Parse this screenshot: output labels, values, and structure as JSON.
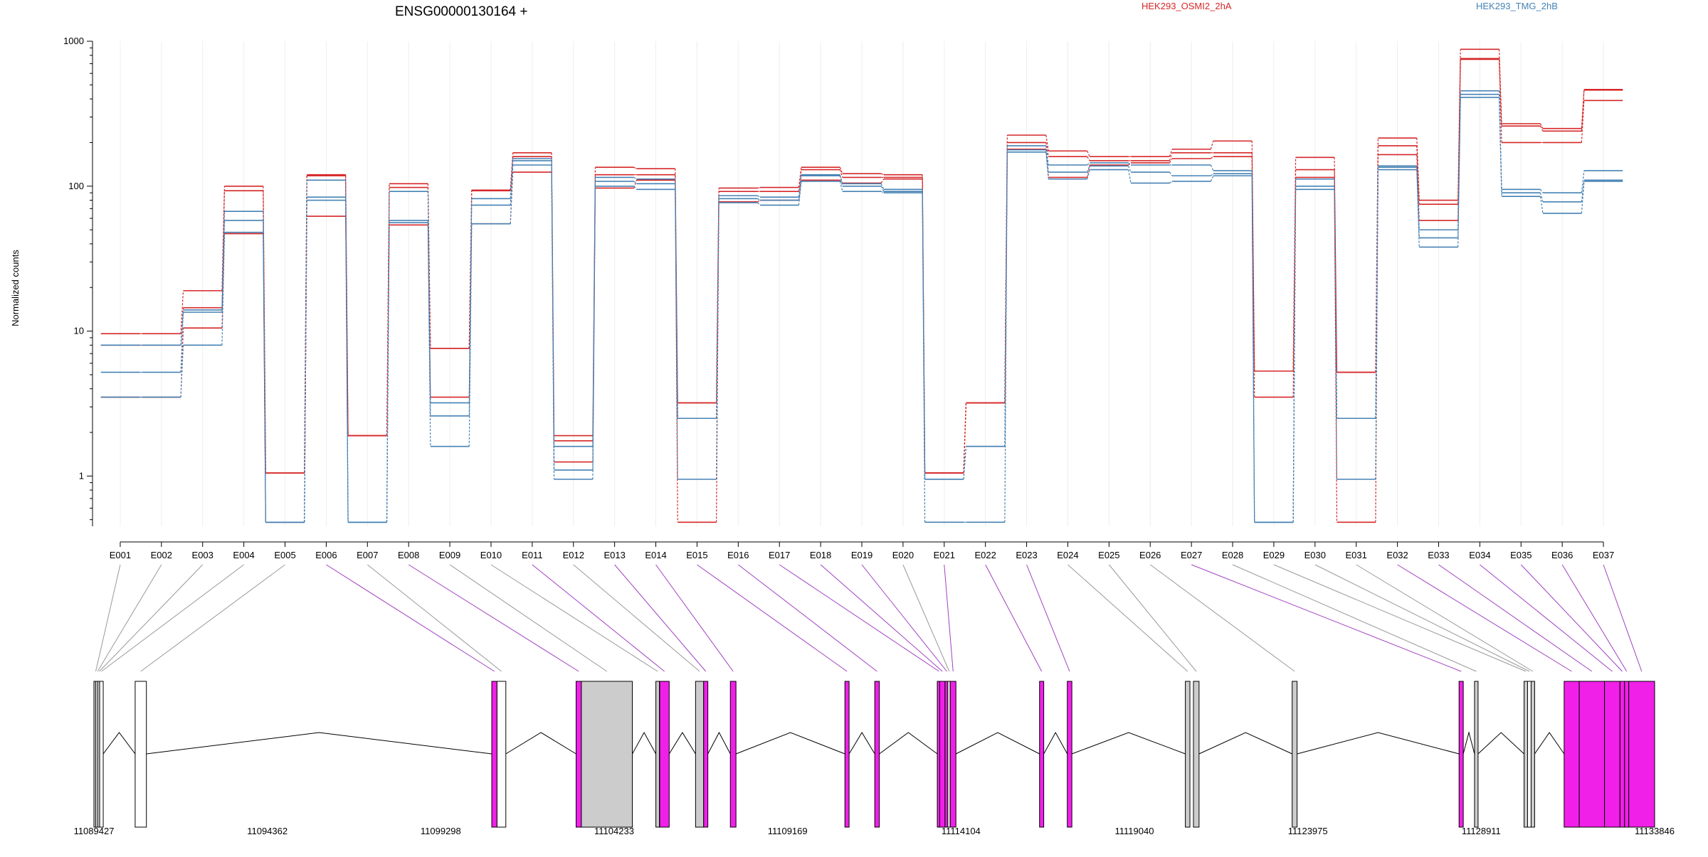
{
  "chart_data": {
    "type": "line",
    "title": "ENSG00000130164 +",
    "ylabel": "Normalized counts",
    "yscale": "log",
    "ylim": [
      0.45,
      1000
    ],
    "yticks": [
      "1",
      "10",
      "100",
      "1000"
    ],
    "grid": true,
    "legend_position": "top",
    "categories": [
      "E001",
      "E002",
      "E003",
      "E004",
      "E005",
      "E006",
      "E007",
      "E008",
      "E009",
      "E010",
      "E011",
      "E012",
      "E013",
      "E014",
      "E015",
      "E016",
      "E017",
      "E018",
      "E019",
      "E020",
      "E021",
      "E022",
      "E023",
      "E024",
      "E025",
      "E026",
      "E027",
      "E028",
      "E029",
      "E030",
      "E031",
      "E032",
      "E033",
      "E034",
      "E035",
      "E036",
      "E037"
    ],
    "series": [
      {
        "name": "HEK293_OSMI2_2hA",
        "color": "#d62728",
        "values": [
          9.6,
          9.6,
          19,
          100,
          1.05,
          120,
          1.9,
          104,
          7.6,
          94,
          170,
          1.9,
          135,
          132,
          3.2,
          97,
          98,
          135,
          122,
          120,
          1.05,
          3.2,
          225,
          175,
          160,
          160,
          180,
          205,
          5.3,
          158,
          5.2,
          215,
          80,
          880,
          270,
          250,
          465
        ]
      },
      {
        "name": "HEK293_OSMI2_2hA",
        "color": "#d62728",
        "values": [
          8.0,
          8.0,
          14.5,
          93,
          1.05,
          118,
          1.9,
          98,
          7.6,
          93,
          160,
          1.75,
          120,
          120,
          3.2,
          92,
          92,
          130,
          115,
          115,
          1.05,
          3.2,
          200,
          160,
          150,
          150,
          170,
          170,
          5.3,
          130,
          5.2,
          190,
          75,
          750,
          260,
          240,
          460
        ]
      },
      {
        "name": "HEK293_OSMI2_2hA",
        "color": "#d62728",
        "values": [
          3.5,
          3.5,
          10.5,
          47,
          0.48,
          62,
          1.9,
          54,
          3.5,
          55,
          125,
          1.25,
          97,
          110,
          0.48,
          78,
          80,
          110,
          105,
          112,
          1.05,
          3.2,
          180,
          115,
          140,
          145,
          155,
          160,
          3.5,
          115,
          0.48,
          165,
          58,
          760,
          200,
          200,
          390
        ]
      },
      {
        "name": "HEK293_TMG_2hB",
        "color": "#4682b4",
        "values": [
          8.0,
          8.0,
          14,
          67,
          0.48,
          110,
          0.48,
          92,
          3.2,
          82,
          155,
          1.6,
          115,
          112,
          2.5,
          86,
          84,
          120,
          104,
          95,
          0.95,
          1.6,
          190,
          140,
          145,
          140,
          140,
          128,
          0.48,
          100,
          2.5,
          138,
          50,
          455,
          95,
          90,
          128
        ]
      },
      {
        "name": "HEK293_TMG_2hB",
        "color": "#4682b4",
        "values": [
          5.2,
          5.2,
          13.5,
          58,
          0.48,
          84,
          0.48,
          58,
          2.6,
          74,
          150,
          1.1,
          108,
          104,
          2.5,
          82,
          80,
          118,
          100,
          92,
          0.95,
          1.6,
          178,
          125,
          138,
          125,
          118,
          122,
          0.48,
          95,
          2.5,
          135,
          44,
          430,
          90,
          78,
          110
        ]
      },
      {
        "name": "HEK293_TMG_2hB",
        "color": "#4682b4",
        "values": [
          3.5,
          3.5,
          8.0,
          48,
          0.48,
          80,
          0.48,
          56,
          1.6,
          55,
          140,
          0.95,
          100,
          95,
          0.95,
          77,
          74,
          108,
          92,
          90,
          0.48,
          0.48,
          172,
          112,
          130,
          105,
          108,
          118,
          0.48,
          112,
          0.95,
          130,
          38,
          410,
          85,
          65,
          108
        ]
      }
    ],
    "gene_model": {
      "coordinate_labels": [
        "11089427",
        "11094362",
        "11099298",
        "11104233",
        "11109169",
        "11114104",
        "11119040",
        "11123975",
        "11128911",
        "11133846"
      ],
      "gene_start": 11089427,
      "gene_end": 11133846,
      "exon_color_colored": "#f020e8",
      "exon_color_constitutive": "#cccccc",
      "exons": [
        {
          "id": "E001",
          "start": 11089427,
          "end": 11089480,
          "fill": "grey",
          "colored": false
        },
        {
          "id": "E002",
          "start": 11089480,
          "end": 11089530,
          "fill": "white",
          "colored": false
        },
        {
          "id": "E003",
          "start": 11089530,
          "end": 11089590,
          "fill": "grey",
          "colored": false
        },
        {
          "id": "E004",
          "start": 11089590,
          "end": 11089640,
          "fill": "white",
          "colored": false
        },
        {
          "id": "E005",
          "start": 11090600,
          "end": 11090920,
          "fill": "white",
          "colored": false
        },
        {
          "id": "E006",
          "start": 11100750,
          "end": 11100900,
          "fill": "magenta",
          "colored": true
        },
        {
          "id": "E007",
          "start": 11100900,
          "end": 11101150,
          "fill": "white",
          "colored": false
        },
        {
          "id": "E008",
          "start": 11103150,
          "end": 11103300,
          "fill": "magenta",
          "colored": true
        },
        {
          "id": "E009",
          "start": 11103300,
          "end": 11104750,
          "fill": "grey",
          "colored": false
        },
        {
          "id": "E010",
          "start": 11105420,
          "end": 11105480,
          "fill": "grey",
          "colored": false
        },
        {
          "id": "E011",
          "start": 11105530,
          "end": 11105800,
          "fill": "magenta",
          "colored": true
        },
        {
          "id": "E012",
          "start": 11106550,
          "end": 11106780,
          "fill": "grey",
          "colored": false
        },
        {
          "id": "E013",
          "start": 11106780,
          "end": 11106900,
          "fill": "magenta",
          "colored": true
        },
        {
          "id": "E014",
          "start": 11107540,
          "end": 11107700,
          "fill": "magenta",
          "colored": true
        },
        {
          "id": "E015",
          "start": 11110800,
          "end": 11110920,
          "fill": "magenta",
          "colored": true
        },
        {
          "id": "E016",
          "start": 11111650,
          "end": 11111780,
          "fill": "magenta",
          "colored": true
        },
        {
          "id": "E017",
          "start": 11113430,
          "end": 11113500,
          "fill": "magenta",
          "colored": true
        },
        {
          "id": "E018",
          "start": 11113500,
          "end": 11113650,
          "fill": "magenta",
          "colored": true
        },
        {
          "id": "E019",
          "start": 11113650,
          "end": 11113720,
          "fill": "magenta",
          "colored": true
        },
        {
          "id": "E020",
          "start": 11113720,
          "end": 11113800,
          "fill": "grey",
          "colored": false
        },
        {
          "id": "E021",
          "start": 11113800,
          "end": 11113960,
          "fill": "magenta",
          "colored": true
        },
        {
          "id": "E022",
          "start": 11116340,
          "end": 11116460,
          "fill": "magenta",
          "colored": true
        },
        {
          "id": "E023",
          "start": 11117130,
          "end": 11117260,
          "fill": "magenta",
          "colored": true
        },
        {
          "id": "E024",
          "start": 11120490,
          "end": 11120620,
          "fill": "grey",
          "colored": false
        },
        {
          "id": "E025",
          "start": 11120720,
          "end": 11120880,
          "fill": "grey",
          "colored": false
        },
        {
          "id": "E026",
          "start": 11123530,
          "end": 11123670,
          "fill": "grey",
          "colored": false
        },
        {
          "id": "E027",
          "start": 11128280,
          "end": 11128400,
          "fill": "magenta",
          "colored": true
        },
        {
          "id": "E028",
          "start": 11128720,
          "end": 11128800,
          "fill": "grey",
          "colored": false
        },
        {
          "id": "E029",
          "start": 11130130,
          "end": 11130230,
          "fill": "grey",
          "colored": false
        },
        {
          "id": "E030",
          "start": 11130230,
          "end": 11130330,
          "fill": "white",
          "colored": false
        },
        {
          "id": "E031",
          "start": 11130330,
          "end": 11130430,
          "fill": "grey",
          "colored": false
        },
        {
          "id": "E032",
          "start": 11131270,
          "end": 11131700,
          "fill": "magenta",
          "colored": true
        },
        {
          "id": "E033",
          "start": 11131700,
          "end": 11132420,
          "fill": "magenta",
          "colored": true
        },
        {
          "id": "E034",
          "start": 11132420,
          "end": 11132860,
          "fill": "magenta",
          "colored": true
        },
        {
          "id": "E035",
          "start": 11132860,
          "end": 11132990,
          "fill": "magenta",
          "colored": true
        },
        {
          "id": "E036",
          "start": 11132990,
          "end": 11133110,
          "fill": "magenta",
          "colored": true
        },
        {
          "id": "E037",
          "start": 11133110,
          "end": 11133846,
          "fill": "magenta",
          "colored": true
        }
      ]
    }
  }
}
